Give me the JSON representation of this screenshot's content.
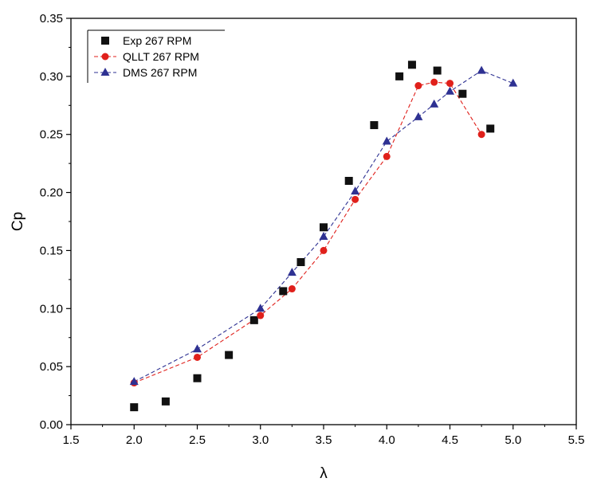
{
  "chart_data": {
    "type": "scatter",
    "xlabel": "λ",
    "ylabel": "Cp",
    "xlim": [
      1.5,
      5.5
    ],
    "ylim": [
      0.0,
      0.35
    ],
    "x_ticks": [
      "1.5",
      "2.0",
      "2.5",
      "3.0",
      "3.5",
      "4.0",
      "4.5",
      "5.0",
      "5.5"
    ],
    "y_ticks": [
      "0.00",
      "0.05",
      "0.10",
      "0.15",
      "0.20",
      "0.25",
      "0.30",
      "0.35"
    ],
    "legend_position": "top-left",
    "series": [
      {
        "name": "Exp 267 RPM",
        "marker": "square",
        "line": "none",
        "color": "#111111",
        "x": [
          2.0,
          2.25,
          2.5,
          2.75,
          2.95,
          3.18,
          3.32,
          3.5,
          3.7,
          3.9,
          4.1,
          4.2,
          4.4,
          4.6,
          4.82
        ],
        "y": [
          0.015,
          0.02,
          0.04,
          0.06,
          0.09,
          0.115,
          0.14,
          0.17,
          0.21,
          0.258,
          0.3,
          0.31,
          0.305,
          0.285,
          0.255
        ]
      },
      {
        "name": "QLLT 267 RPM",
        "marker": "circle",
        "line": "dashed",
        "color": "#e0201b",
        "x": [
          2.0,
          2.5,
          3.0,
          3.25,
          3.5,
          3.75,
          4.0,
          4.25,
          4.375,
          4.5,
          4.75
        ],
        "y": [
          0.036,
          0.058,
          0.094,
          0.117,
          0.15,
          0.194,
          0.231,
          0.292,
          0.295,
          0.294,
          0.25
        ]
      },
      {
        "name": "DMS 267 RPM",
        "marker": "triangle",
        "line": "dashed",
        "color": "#2e3192",
        "x": [
          2.0,
          2.5,
          3.0,
          3.25,
          3.5,
          3.75,
          4.0,
          4.25,
          4.375,
          4.5,
          4.75,
          5.0
        ],
        "y": [
          0.037,
          0.065,
          0.1,
          0.131,
          0.162,
          0.201,
          0.244,
          0.265,
          0.276,
          0.287,
          0.305,
          0.294
        ]
      }
    ]
  }
}
